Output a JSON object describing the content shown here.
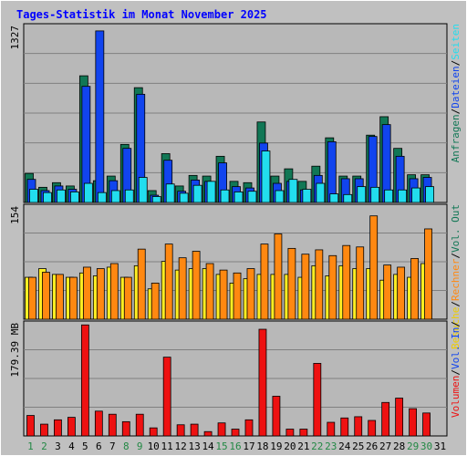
{
  "title": "Tages-Statistik im Monat November 2025",
  "colors": {
    "background": "#c0c0c0",
    "panel": "#b8b8b8",
    "grid": "#808080",
    "anfragen": "#117755",
    "dateien": "#1144ee",
    "seiten": "#22ddee",
    "besuche": "#ffee22",
    "rechner": "#ff8811",
    "volumen": "#ee1111",
    "weekend": "#228844",
    "weekday": "#000000"
  },
  "chart_data": [
    {
      "type": "bar",
      "panel": "hits",
      "ymax_label": "1327",
      "ymax": 1327,
      "categories": [
        "1",
        "2",
        "3",
        "4",
        "5",
        "6",
        "7",
        "8",
        "9",
        "10",
        "11",
        "12",
        "13",
        "14",
        "15",
        "16",
        "17",
        "18",
        "19",
        "20",
        "21",
        "22",
        "23",
        "24",
        "25",
        "26",
        "27",
        "28",
        "29",
        "30",
        "31"
      ],
      "series": [
        {
          "name": "Anfragen",
          "values": [
            220,
            115,
            150,
            125,
            960,
            165,
            200,
            440,
            870,
            90,
            370,
            125,
            205,
            200,
            350,
            160,
            150,
            610,
            200,
            255,
            160,
            275,
            490,
            200,
            200,
            510,
            650,
            410,
            210,
            210,
            0
          ]
        },
        {
          "name": "Dateien",
          "values": [
            175,
            90,
            125,
            100,
            880,
            1300,
            165,
            410,
            820,
            55,
            320,
            85,
            170,
            160,
            300,
            120,
            110,
            450,
            145,
            160,
            95,
            205,
            460,
            180,
            180,
            500,
            590,
            350,
            180,
            190,
            0
          ]
        },
        {
          "name": "Seiten",
          "values": [
            100,
            75,
            95,
            80,
            145,
            75,
            90,
            95,
            190,
            45,
            140,
            70,
            130,
            160,
            95,
            80,
            85,
            390,
            90,
            175,
            100,
            145,
            65,
            60,
            120,
            115,
            95,
            95,
            110,
            120,
            0
          ]
        }
      ]
    },
    {
      "type": "bar",
      "panel": "visits",
      "ymax_label": "154",
      "ymax": 154,
      "categories": [
        "1",
        "2",
        "3",
        "4",
        "5",
        "6",
        "7",
        "8",
        "9",
        "10",
        "11",
        "12",
        "13",
        "14",
        "15",
        "16",
        "17",
        "18",
        "19",
        "20",
        "21",
        "22",
        "23",
        "24",
        "25",
        "26",
        "27",
        "28",
        "29",
        "30",
        "31"
      ],
      "series": [
        {
          "name": "Besuche",
          "values": [
            58,
            70,
            62,
            58,
            64,
            60,
            72,
            58,
            74,
            42,
            80,
            68,
            70,
            70,
            62,
            50,
            56,
            62,
            62,
            62,
            58,
            74,
            60,
            74,
            70,
            70,
            54,
            62,
            58,
            77,
            0
          ]
        },
        {
          "name": "Rechner",
          "values": [
            58,
            65,
            62,
            58,
            72,
            70,
            77,
            58,
            97,
            50,
            104,
            85,
            94,
            77,
            68,
            64,
            70,
            104,
            118,
            98,
            90,
            96,
            88,
            102,
            100,
            143,
            75,
            72,
            84,
            125,
            0
          ]
        }
      ]
    },
    {
      "type": "bar",
      "panel": "volume",
      "ymax_label": "179.39 MB",
      "ymax": 179.39,
      "categories": [
        "1",
        "2",
        "3",
        "4",
        "5",
        "6",
        "7",
        "8",
        "9",
        "10",
        "11",
        "12",
        "13",
        "14",
        "15",
        "16",
        "17",
        "18",
        "19",
        "20",
        "21",
        "22",
        "23",
        "24",
        "25",
        "26",
        "27",
        "28",
        "29",
        "30",
        "31"
      ],
      "series": [
        {
          "name": "Volumen",
          "values": [
            33,
            19,
            26,
            30,
            179,
            40,
            35,
            23,
            35,
            13,
            127,
            18,
            19,
            7,
            21,
            11,
            26,
            172,
            64,
            11,
            11,
            117,
            22,
            29,
            31,
            25,
            54,
            61,
            44,
            37,
            0
          ]
        }
      ]
    }
  ],
  "day_labels": [
    {
      "text": "1",
      "weekend": true
    },
    {
      "text": "2",
      "weekend": true
    },
    {
      "text": "3",
      "weekend": false
    },
    {
      "text": "4",
      "weekend": false
    },
    {
      "text": "5",
      "weekend": false
    },
    {
      "text": "6",
      "weekend": false
    },
    {
      "text": "7",
      "weekend": false
    },
    {
      "text": "8",
      "weekend": true
    },
    {
      "text": "9",
      "weekend": true
    },
    {
      "text": "10",
      "weekend": false
    },
    {
      "text": "11",
      "weekend": false
    },
    {
      "text": "12",
      "weekend": false
    },
    {
      "text": "13",
      "weekend": false
    },
    {
      "text": "14",
      "weekend": false
    },
    {
      "text": "15",
      "weekend": true
    },
    {
      "text": "16",
      "weekend": true
    },
    {
      "text": "17",
      "weekend": false
    },
    {
      "text": "18",
      "weekend": false
    },
    {
      "text": "19",
      "weekend": false
    },
    {
      "text": "20",
      "weekend": false
    },
    {
      "text": "21",
      "weekend": false
    },
    {
      "text": "22",
      "weekend": true
    },
    {
      "text": "23",
      "weekend": true
    },
    {
      "text": "24",
      "weekend": false
    },
    {
      "text": "25",
      "weekend": false
    },
    {
      "text": "26",
      "weekend": false
    },
    {
      "text": "27",
      "weekend": false
    },
    {
      "text": "28",
      "weekend": false
    },
    {
      "text": "29",
      "weekend": true
    },
    {
      "text": "30",
      "weekend": true
    },
    {
      "text": "31",
      "weekend": false
    }
  ],
  "legends": [
    {
      "panel": "hits",
      "items": [
        {
          "text": "Anfragen",
          "color": "#117755"
        },
        {
          "text": "/",
          "color": "#000000"
        },
        {
          "text": "Dateien",
          "color": "#1144ee"
        },
        {
          "text": "/",
          "color": "#000000"
        },
        {
          "text": "Seiten",
          "color": "#22ddee"
        }
      ]
    },
    {
      "panel": "visits",
      "items": [
        {
          "text": "Besuche",
          "color": "#eecc00"
        },
        {
          "text": "/",
          "color": "#000000"
        },
        {
          "text": "Rechner",
          "color": "#ff8811"
        },
        {
          "text": "/",
          "color": "#000000"
        },
        {
          "text": "Vol. Out",
          "color": "#117755"
        }
      ]
    },
    {
      "panel": "volume",
      "items": [
        {
          "text": "Volumen",
          "color": "#ee1111"
        },
        {
          "text": "/",
          "color": "#000000"
        },
        {
          "text": "Vol. In",
          "color": "#1144ee"
        },
        {
          "text": "/",
          "color": "#000000"
        }
      ]
    }
  ]
}
